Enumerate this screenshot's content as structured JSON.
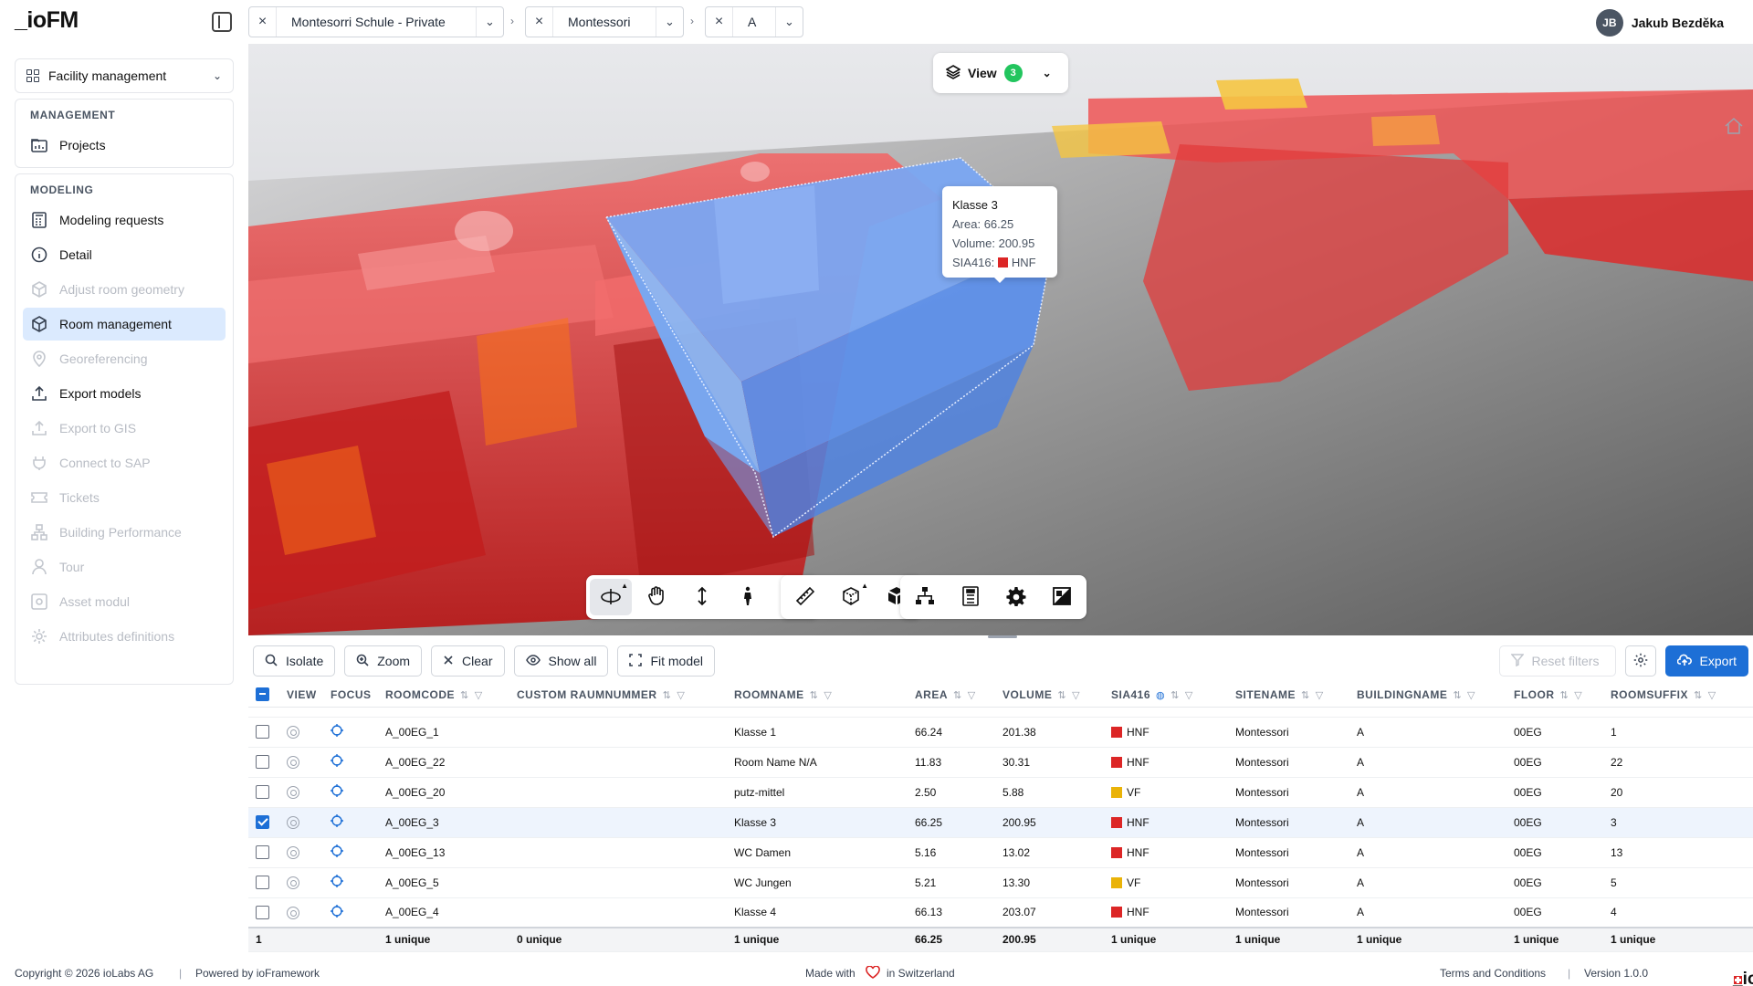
{
  "app": {
    "logo": "_ioFM"
  },
  "breadcrumbs": [
    {
      "label": "Montesorri Schule - Private"
    },
    {
      "label": "Montessori"
    },
    {
      "label": "A"
    }
  ],
  "user": {
    "initials": "JB",
    "name": "Jakub Bezděka"
  },
  "sidebar": {
    "selector": "Facility management",
    "groups": [
      {
        "title": "Management",
        "items": [
          {
            "label": "Projects",
            "state": "normal"
          }
        ]
      },
      {
        "title": "Modeling",
        "items": [
          {
            "label": "Modeling requests",
            "state": "normal"
          },
          {
            "label": "Detail",
            "state": "normal"
          },
          {
            "label": "Adjust room geometry",
            "state": "disabled"
          },
          {
            "label": "Room management",
            "state": "active"
          },
          {
            "label": "Georeferencing",
            "state": "disabled"
          },
          {
            "label": "Export models",
            "state": "normal"
          },
          {
            "label": "Export to GIS",
            "state": "disabled"
          },
          {
            "label": "Connect to SAP",
            "state": "disabled"
          },
          {
            "label": "Tickets",
            "state": "disabled"
          },
          {
            "label": "Building Performance",
            "state": "disabled"
          },
          {
            "label": "Tour",
            "state": "disabled"
          },
          {
            "label": "Asset modul",
            "state": "disabled"
          },
          {
            "label": "Attributes definitions",
            "state": "disabled"
          }
        ]
      }
    ]
  },
  "viewer": {
    "view_button": {
      "label": "View",
      "count": "3"
    },
    "tooltip": {
      "title": "Klasse 3",
      "area_label": "Area:",
      "area_value": "66.25",
      "volume_label": "Volume:",
      "volume_value": "200.95",
      "sia_label": "SIA416:",
      "sia_value": "HNF",
      "sia_color": "#dc2626"
    },
    "colors": {
      "hnf": "#dc2626",
      "vf": "#eab308",
      "selected": "#6fa0f0"
    }
  },
  "table_toolbar": {
    "isolate": "Isolate",
    "zoom": "Zoom",
    "clear": "Clear",
    "show_all": "Show all",
    "fit_model": "Fit model",
    "reset_filters": "Reset filters",
    "export": "Export"
  },
  "table": {
    "columns": [
      "View",
      "Focus",
      "Roomcode",
      "Custom Raumnummer",
      "Roomname",
      "Area",
      "Volume",
      "SIA416",
      "Sitename",
      "Buildingname",
      "Floor",
      "Roomsuffix"
    ],
    "rows": [
      {
        "checked": false,
        "roomcode": "A_00EG_1",
        "custom": "",
        "roomname": "Klasse 1",
        "area": "66.24",
        "volume": "201.38",
        "sia": "HNF",
        "sia_color": "#dc2626",
        "site": "Montessori",
        "building": "A",
        "floor": "00EG",
        "suffix": "1"
      },
      {
        "checked": false,
        "roomcode": "A_00EG_22",
        "custom": "",
        "roomname": "Room Name N/A",
        "area": "11.83",
        "volume": "30.31",
        "sia": "HNF",
        "sia_color": "#dc2626",
        "site": "Montessori",
        "building": "A",
        "floor": "00EG",
        "suffix": "22"
      },
      {
        "checked": false,
        "roomcode": "A_00EG_20",
        "custom": "",
        "roomname": "putz-mittel",
        "area": "2.50",
        "volume": "5.88",
        "sia": "VF",
        "sia_color": "#eab308",
        "site": "Montessori",
        "building": "A",
        "floor": "00EG",
        "suffix": "20"
      },
      {
        "checked": true,
        "roomcode": "A_00EG_3",
        "custom": "",
        "roomname": "Klasse 3",
        "area": "66.25",
        "volume": "200.95",
        "sia": "HNF",
        "sia_color": "#dc2626",
        "site": "Montessori",
        "building": "A",
        "floor": "00EG",
        "suffix": "3"
      },
      {
        "checked": false,
        "roomcode": "A_00EG_13",
        "custom": "",
        "roomname": "WC Damen",
        "area": "5.16",
        "volume": "13.02",
        "sia": "HNF",
        "sia_color": "#dc2626",
        "site": "Montessori",
        "building": "A",
        "floor": "00EG",
        "suffix": "13"
      },
      {
        "checked": false,
        "roomcode": "A_00EG_5",
        "custom": "",
        "roomname": "WC Jungen",
        "area": "5.21",
        "volume": "13.30",
        "sia": "VF",
        "sia_color": "#eab308",
        "site": "Montessori",
        "building": "A",
        "floor": "00EG",
        "suffix": "5"
      },
      {
        "checked": false,
        "roomcode": "A_00EG_4",
        "custom": "",
        "roomname": "Klasse 4",
        "area": "66.13",
        "volume": "203.07",
        "sia": "HNF",
        "sia_color": "#dc2626",
        "site": "Montessori",
        "building": "A",
        "floor": "00EG",
        "suffix": "4"
      }
    ],
    "footer": {
      "count": "1",
      "roomcode": "1 unique",
      "custom": "0 unique",
      "roomname": "1 unique",
      "area": "66.25",
      "volume": "200.95",
      "sia": "1 unique",
      "site": "1 unique",
      "building": "1 unique",
      "floor": "1 unique",
      "suffix": "1 unique"
    }
  },
  "footer": {
    "copyright": "Copyright © 2026 ioLabs AG",
    "powered": "Powered by ioFramework",
    "made_with": "Made with",
    "in_switzerland": "in Switzerland",
    "terms": "Terms and Conditions",
    "version": "Version 1.0.0",
    "brand": "_ioLabs"
  }
}
